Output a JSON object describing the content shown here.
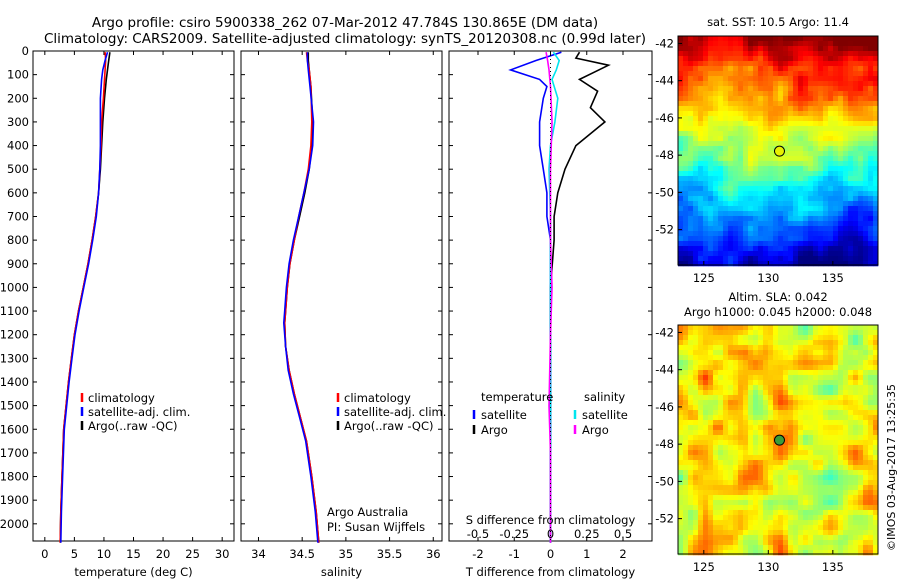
{
  "header": {
    "title_line1": "Argo profile: csiro 5900338_262 07-Mar-2012 47.784S 130.865E (DM data)",
    "title_line2": "Climatology: CARS2009. Satellite-adjusted climatology: synTS_20120308.nc (0.99d later)"
  },
  "chart_data": [
    {
      "id": "temperature",
      "type": "line",
      "xlabel": "temperature (deg C)",
      "ylabel": "",
      "xlim": [
        -2,
        32
      ],
      "ylim": [
        2080,
        0
      ],
      "xticks": [
        "0",
        "5",
        "10",
        "15",
        "20",
        "25",
        "30"
      ],
      "xtick_values": [
        0,
        5,
        10,
        15,
        20,
        25,
        30
      ],
      "yticks": [
        "0",
        "100",
        "200",
        "300",
        "400",
        "500",
        "600",
        "700",
        "800",
        "900",
        "1000",
        "1100",
        "1200",
        "1300",
        "1400",
        "1500",
        "1600",
        "1700",
        "1800",
        "1900",
        "2000"
      ],
      "ytick_values": [
        0,
        100,
        200,
        300,
        400,
        500,
        600,
        700,
        800,
        900,
        1000,
        1100,
        1200,
        1300,
        1400,
        1500,
        1600,
        1700,
        1800,
        1900,
        2000
      ],
      "legend": [
        "climatology",
        "satellite-adj. clim.",
        "Argo(..raw -QC)"
      ],
      "legend_colors": [
        "#ff0000",
        "#0000ff",
        "#000000"
      ],
      "series": [
        {
          "name": "Argo(..raw -QC)",
          "color": "#000000",
          "x": [
            11.0,
            10.8,
            10.6,
            10.4,
            10.1,
            9.8,
            9.6,
            9.4,
            9.1,
            8.6,
            8.0,
            7.3,
            6.5,
            5.7,
            5.0,
            4.5,
            4.0,
            3.6,
            3.2,
            2.9,
            2.7,
            2.6
          ],
          "y": [
            5,
            40,
            80,
            120,
            200,
            300,
            400,
            500,
            600,
            700,
            800,
            900,
            1000,
            1100,
            1200,
            1300,
            1400,
            1500,
            1600,
            1800,
            1950,
            2080
          ]
        },
        {
          "name": "climatology",
          "color": "#ff0000",
          "x": [
            10.2,
            10.3,
            10.2,
            10.1,
            9.9,
            9.6,
            9.5,
            9.3,
            9.1,
            8.6,
            8.0,
            7.3,
            6.5,
            5.7,
            5.0,
            4.5,
            4.0,
            3.6,
            3.2,
            2.9,
            2.7,
            2.6
          ],
          "y": [
            5,
            40,
            80,
            120,
            200,
            300,
            400,
            500,
            600,
            700,
            800,
            900,
            1000,
            1100,
            1200,
            1300,
            1400,
            1500,
            1600,
            1800,
            1950,
            2080
          ]
        },
        {
          "name": "satellite-adj. clim.",
          "color": "#0000ff",
          "x": [
            10.6,
            10.2,
            9.8,
            9.6,
            9.4,
            9.4,
            9.4,
            9.3,
            9.1,
            8.7,
            8.1,
            7.4,
            6.6,
            5.8,
            5.1,
            4.6,
            4.1,
            3.7,
            3.3,
            3.0,
            2.8,
            2.7
          ],
          "y": [
            5,
            40,
            80,
            120,
            200,
            300,
            400,
            500,
            600,
            700,
            800,
            900,
            1000,
            1100,
            1200,
            1300,
            1400,
            1500,
            1600,
            1800,
            1950,
            2080
          ]
        }
      ]
    },
    {
      "id": "salinity",
      "type": "line",
      "xlabel": "salinity",
      "xlim": [
        33.8,
        36.1
      ],
      "ylim": [
        2080,
        0
      ],
      "xticks": [
        "34",
        "34.5",
        "35",
        "35.5",
        "36"
      ],
      "xtick_values": [
        34,
        34.5,
        35,
        35.5,
        36
      ],
      "legend": [
        "climatology",
        "satellite-adj. clim.",
        "Argo(..raw -QC)"
      ],
      "legend_colors": [
        "#ff0000",
        "#0000ff",
        "#000000"
      ],
      "annotation": [
        "Argo Australia",
        "PI: Susan Wijffels"
      ],
      "series": [
        {
          "name": "Argo(..raw -QC)",
          "color": "#000000",
          "x": [
            34.57,
            34.57,
            34.58,
            34.6,
            34.62,
            34.61,
            34.58,
            34.53,
            34.47,
            34.41,
            34.36,
            34.33,
            34.31,
            34.3,
            34.31,
            34.35,
            34.41,
            34.48,
            34.55,
            34.61,
            34.66,
            34.69
          ],
          "y": [
            5,
            40,
            80,
            150,
            300,
            400,
            500,
            600,
            700,
            800,
            900,
            1000,
            1100,
            1150,
            1250,
            1350,
            1450,
            1550,
            1650,
            1800,
            1950,
            2080
          ]
        },
        {
          "name": "climatology",
          "color": "#ff0000",
          "x": [
            34.55,
            34.56,
            34.58,
            34.6,
            34.61,
            34.6,
            34.57,
            34.52,
            34.46,
            34.41,
            34.36,
            34.33,
            34.31,
            34.3,
            34.31,
            34.35,
            34.41,
            34.48,
            34.55,
            34.61,
            34.66,
            34.69
          ],
          "y": [
            5,
            40,
            80,
            150,
            300,
            400,
            500,
            600,
            700,
            800,
            900,
            1000,
            1100,
            1150,
            1250,
            1350,
            1450,
            1550,
            1650,
            1800,
            1950,
            2080
          ]
        },
        {
          "name": "satellite-adj. clim.",
          "color": "#0000ff",
          "x": [
            34.56,
            34.56,
            34.57,
            34.59,
            34.63,
            34.62,
            34.58,
            34.52,
            34.46,
            34.4,
            34.35,
            34.32,
            34.3,
            34.29,
            34.31,
            34.34,
            34.4,
            34.47,
            34.54,
            34.6,
            34.65,
            34.68
          ],
          "y": [
            5,
            40,
            80,
            150,
            300,
            400,
            500,
            600,
            700,
            800,
            900,
            1000,
            1100,
            1150,
            1250,
            1350,
            1450,
            1550,
            1650,
            1800,
            1950,
            2080
          ]
        }
      ]
    },
    {
      "id": "difference",
      "type": "line",
      "xlabel": "T difference from climatology",
      "xlabel_top": "S difference from climatology",
      "xlim": [
        -2.8,
        2.8
      ],
      "ylim": [
        2080,
        0
      ],
      "xticks": [
        "-2",
        "-1",
        "0",
        "1",
        "2"
      ],
      "xtick_values": [
        -2,
        -1,
        0,
        1,
        2
      ],
      "sticks": [
        "-0.5",
        "-0.25",
        "0",
        "0.25",
        "0.5"
      ],
      "stick_values": [
        -0.5,
        -0.25,
        0,
        0.25,
        0.5
      ],
      "legend_headers": [
        "temperature",
        "salinity"
      ],
      "legend_temperature": [
        "satellite",
        "Argo"
      ],
      "legend_temperature_colors": [
        "#0000ff",
        "#000000"
      ],
      "legend_salinity": [
        "satellite",
        "Argo"
      ],
      "legend_salinity_colors": [
        "#00e5ee",
        "#ff00ff"
      ],
      "series": [
        {
          "name": "T Argo",
          "color": "#000000",
          "x": [
            0.8,
            0.7,
            1.6,
            1.2,
            0.8,
            1.3,
            1.1,
            1.5,
            0.7,
            0.4,
            0.2,
            0.1,
            0.1,
            0.0,
            0.0,
            0.0,
            0.0,
            0.0
          ],
          "y": [
            5,
            30,
            60,
            90,
            120,
            170,
            240,
            300,
            400,
            500,
            600,
            700,
            800,
            1000,
            1300,
            1600,
            1900,
            2080
          ]
        },
        {
          "name": "T satellite",
          "color": "#0000ff",
          "x": [
            0.3,
            -0.4,
            -1.1,
            -0.3,
            -0.1,
            -0.2,
            -0.3,
            -0.3,
            -0.2,
            -0.1,
            -0.1,
            0.0,
            0.0,
            0.0,
            0.0,
            0.0,
            0.0,
            0.0
          ],
          "y": [
            5,
            40,
            80,
            120,
            150,
            200,
            300,
            400,
            500,
            600,
            700,
            800,
            900,
            1000,
            1300,
            1600,
            1900,
            2080
          ]
        },
        {
          "name": "S satellite",
          "color": "#00e5ee",
          "x": [
            0.02,
            0.06,
            0.04,
            0.01,
            0.05,
            0.03,
            0.0,
            -0.01,
            0.0,
            0.0,
            0.0,
            0.0,
            0.0,
            0.0
          ],
          "y": [
            5,
            40,
            80,
            120,
            200,
            300,
            400,
            500,
            700,
            900,
            1100,
            1400,
            1800,
            2080
          ]
        },
        {
          "name": "S Argo",
          "color": "#ff00ff",
          "x": [
            -0.03,
            -0.02,
            -0.01,
            0.0,
            0.01,
            0.0,
            0.0,
            0.01,
            0.0,
            -0.01,
            0.0,
            0.0,
            0.0
          ],
          "y": [
            5,
            40,
            80,
            150,
            300,
            500,
            800,
            1000,
            1200,
            1500,
            1700,
            1900,
            2080
          ]
        }
      ]
    },
    {
      "id": "sst-map",
      "type": "heatmap",
      "title": "sat. SST: 10.5  Argo: 11.4",
      "xlim": [
        123,
        138.5
      ],
      "ylim": [
        -53.9,
        -41.6
      ],
      "xticks": [
        "125",
        "130",
        "135"
      ],
      "xtick_values": [
        125,
        130,
        135
      ],
      "yticks": [
        "-42",
        "-44",
        "-46",
        "-48",
        "-50",
        "-52"
      ],
      "ytick_values": [
        -42,
        -44,
        -46,
        -48,
        -50,
        -52
      ],
      "marker": {
        "lon": 130.865,
        "lat": -47.784,
        "color": "#e8f000"
      }
    },
    {
      "id": "sla-map",
      "type": "heatmap",
      "title": "Altim. SLA: 0.042",
      "subtitle": "Argo h1000: 0.045 h2000: 0.048",
      "xlim": [
        123,
        138.5
      ],
      "ylim": [
        -53.9,
        -41.6
      ],
      "xticks": [
        "125",
        "130",
        "135"
      ],
      "xtick_values": [
        125,
        130,
        135
      ],
      "yticks": [
        "-42",
        "-44",
        "-46",
        "-48",
        "-50",
        "-52"
      ],
      "ytick_values": [
        -42,
        -44,
        -46,
        -48,
        -50,
        -52
      ],
      "marker": {
        "lon": 130.865,
        "lat": -47.784,
        "color": "#3a9c3a"
      }
    }
  ],
  "footer": {
    "stamp": "©IMOS 03-Aug-2017 13:25:35"
  }
}
